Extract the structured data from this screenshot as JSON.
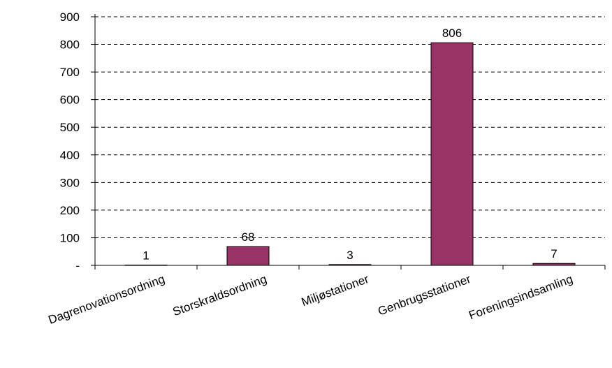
{
  "chart_data": {
    "type": "bar",
    "categories": [
      "Dagrenovationsordning",
      "Storskraldsordning",
      "Miljøstationer",
      "Genbrugsstationer",
      "Foreningsindsamling"
    ],
    "values": [
      1,
      68,
      3,
      806,
      7
    ],
    "data_labels": [
      "1",
      "68",
      "3",
      "806",
      "7"
    ],
    "title": "",
    "xlabel": "",
    "ylabel": "",
    "ylim": [
      0,
      900
    ],
    "yticks": [
      0,
      100,
      200,
      300,
      400,
      500,
      600,
      700,
      800,
      900
    ],
    "ytick_labels": [
      "-",
      "100",
      "200",
      "300",
      "400",
      "500",
      "600",
      "700",
      "800",
      "900"
    ],
    "grid": true,
    "grid_style": "dashed",
    "legend": "none",
    "bar_color": "#993366"
  }
}
